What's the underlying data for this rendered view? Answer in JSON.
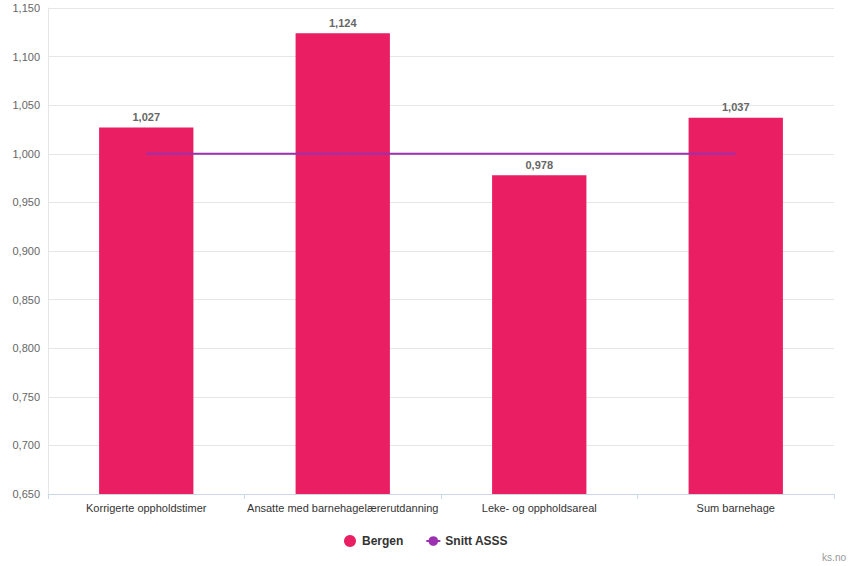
{
  "chart_data": {
    "type": "bar",
    "categories": [
      "Korrigerte oppholdstimer",
      "Ansatte med barnehagelærerutdanning",
      "Leke- og oppholdsareal",
      "Sum barnehage"
    ],
    "series": [
      {
        "name": "Bergen",
        "type": "bar",
        "color": "#e91e63",
        "marker": "circle",
        "values": [
          1.027,
          1.124,
          0.978,
          1.037
        ],
        "value_labels": [
          "1,027",
          "1,124",
          "0,978",
          "1,037"
        ]
      },
      {
        "name": "Snitt ASSS",
        "type": "line",
        "color": "#9b30b0",
        "line_style": "solid",
        "values": [
          1.0,
          1.0,
          1.0,
          1.0
        ]
      }
    ],
    "ylim": [
      0.65,
      1.15
    ],
    "yticks": [
      {
        "value": 0.65,
        "label": "0,650"
      },
      {
        "value": 0.7,
        "label": "0,700"
      },
      {
        "value": 0.75,
        "label": "0,750"
      },
      {
        "value": 0.8,
        "label": "0,800"
      },
      {
        "value": 0.85,
        "label": "0,850"
      },
      {
        "value": 0.9,
        "label": "0,900"
      },
      {
        "value": 0.95,
        "label": "0,950"
      },
      {
        "value": 1.0,
        "label": "1,000"
      },
      {
        "value": 1.05,
        "label": "1,050"
      },
      {
        "value": 1.1,
        "label": "1,100"
      },
      {
        "value": 1.15,
        "label": "1,150"
      }
    ],
    "grid": true,
    "legend": "bottom",
    "data_labels": true,
    "annotations": [
      "ks.no"
    ]
  }
}
